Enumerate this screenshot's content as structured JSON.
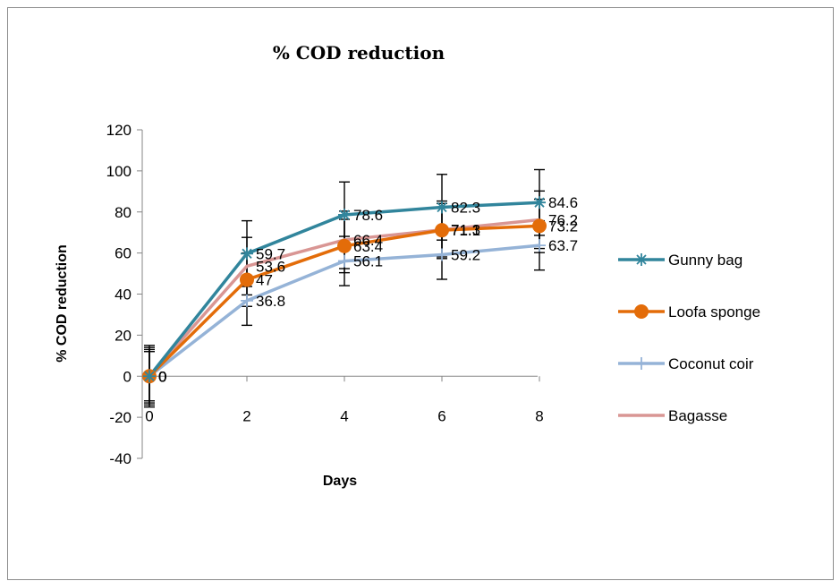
{
  "chart_data": {
    "type": "line",
    "title": "% COD reduction",
    "xlabel": "Days",
    "ylabel": "% COD reduction",
    "x": [
      0,
      2,
      4,
      6,
      8
    ],
    "xticks": [
      "0",
      "2",
      "4",
      "6",
      "8"
    ],
    "ylim": [
      -40,
      120
    ],
    "yticks": [
      "-40",
      "-20",
      "0",
      "20",
      "40",
      "60",
      "80",
      "100",
      "120"
    ],
    "ytick_values": [
      -40,
      -20,
      0,
      20,
      40,
      60,
      80,
      100,
      120
    ],
    "grid": false,
    "legend_position": "right",
    "series": [
      {
        "name": "Gunny bag",
        "values": [
          0,
          59.7,
          78.6,
          82.3,
          84.6
        ],
        "labels": [
          "0",
          "59.7",
          "78.6",
          "82.3",
          "84.6"
        ],
        "error": [
          15,
          16,
          16,
          16,
          16
        ],
        "color": "#31859c",
        "marker": "star"
      },
      {
        "name": "Loofa sponge",
        "values": [
          0,
          47,
          63.4,
          71.1,
          73.2
        ],
        "labels": [
          "0",
          "47",
          "63.4",
          "71.1",
          "73.2"
        ],
        "error": [
          13,
          13,
          13,
          13,
          13
        ],
        "color": "#e36c09",
        "marker": "circle"
      },
      {
        "name": "Coconut coir",
        "values": [
          0,
          36.8,
          56.1,
          59.2,
          63.7
        ],
        "labels": [
          "0",
          "36.8",
          "56.1",
          "59.2",
          "63.7"
        ],
        "error": [
          12,
          12,
          12,
          12,
          12
        ],
        "color": "#95b3d7",
        "marker": "plus"
      },
      {
        "name": "Bagasse",
        "values": [
          0,
          53.6,
          66.4,
          71.3,
          76.2
        ],
        "labels": [
          "0",
          "53.6",
          "66.4",
          "71.3",
          "76.2"
        ],
        "error": [
          14,
          14,
          14,
          14,
          14
        ],
        "color": "#d99694",
        "marker": "none"
      }
    ]
  }
}
